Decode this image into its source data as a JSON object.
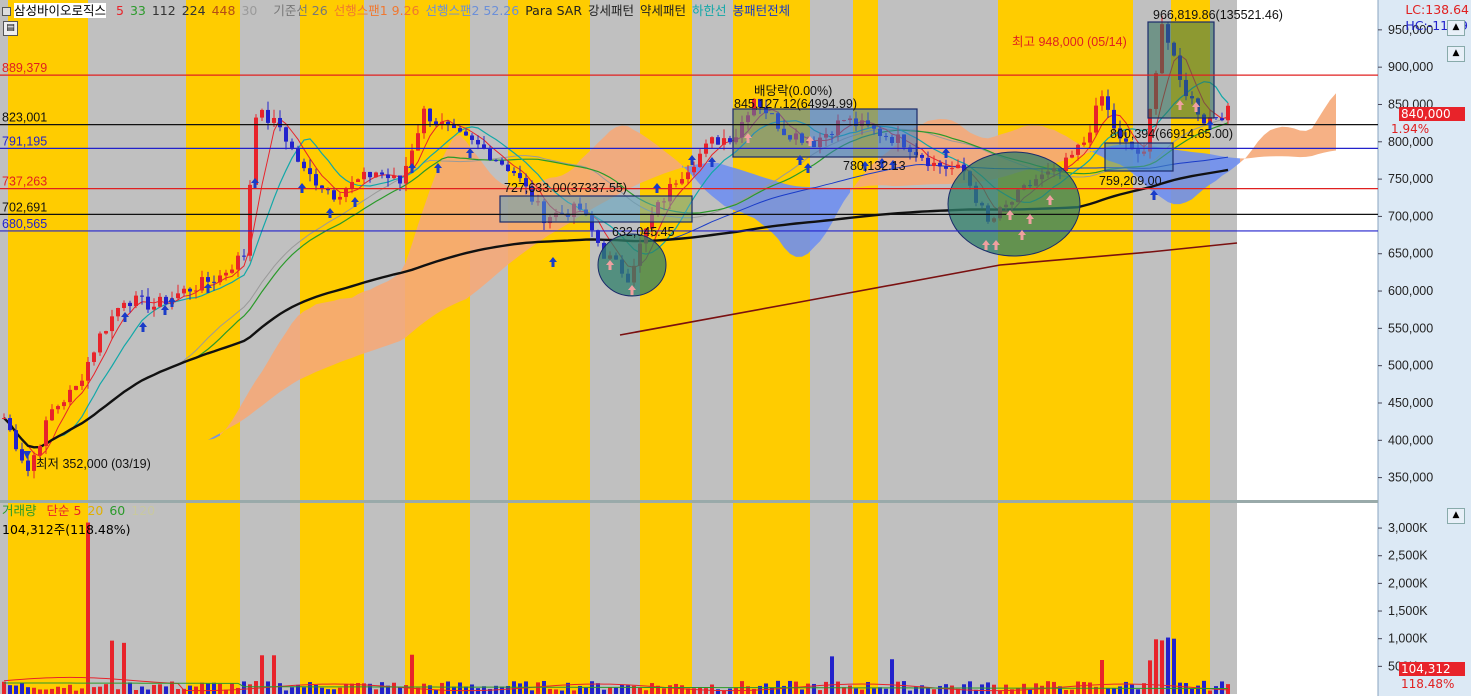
{
  "legend": {
    "title": "삼성바이오로직스",
    "ma": [
      {
        "label": "5",
        "color": "#e8232a"
      },
      {
        "label": "33",
        "color": "#2a9a2a"
      },
      {
        "label": "112",
        "color": "#333333"
      },
      {
        "label": "224",
        "color": "#333333"
      },
      {
        "label": "448",
        "color": "#b44c14"
      },
      {
        "label": "30",
        "color": "#9a9a9a"
      }
    ],
    "items": [
      {
        "label": "기준선 26",
        "color": "#777777"
      },
      {
        "label": "선행스팬1 9.26",
        "color": "#f07830"
      },
      {
        "label": "선행스팬2 52.26",
        "color": "#6b8fd8"
      },
      {
        "label": "Para SAR",
        "color": "#222222"
      },
      {
        "label": "강세패턴",
        "color": "#222222"
      },
      {
        "label": "약세패턴",
        "color": "#222222"
      },
      {
        "label": "하한선",
        "color": "#12a8a8"
      },
      {
        "label": "봉패턴전체",
        "color": "#1a3cc8"
      }
    ]
  },
  "top_right": {
    "lc": "LC:138.64",
    "hc": "HC:-11.39"
  },
  "annotations": {
    "high": "최고 948,000 (05/14)",
    "low": "최저 352,000 (03/19)",
    "dividend": "배당락(0.00%)",
    "box_labels": [
      "966,819.86(135521.46)",
      "845,127.12(64994.99)",
      "780,132.13",
      "727,633.00(37337.55)",
      "632,045.45",
      "759,209.00",
      "800,394(66914.65.00)"
    ]
  },
  "levels": [
    {
      "label": "889,379",
      "value": 889379,
      "color": "#e02020"
    },
    {
      "label": "823,001",
      "value": 823001,
      "color": "#111111"
    },
    {
      "label": "791,195",
      "value": 791195,
      "color": "#2222cc"
    },
    {
      "label": "737,263",
      "value": 737263,
      "color": "#e02020"
    },
    {
      "label": "702,691",
      "value": 702691,
      "color": "#111111"
    },
    {
      "label": "680,565",
      "value": 680565,
      "color": "#2222cc"
    }
  ],
  "current": {
    "price": "840,000",
    "change": "1.94%"
  },
  "price_axis": {
    "min": 320000,
    "max": 990000,
    "ticks": [
      "950,000",
      "900,000",
      "850,000",
      "800,000",
      "750,000",
      "700,000",
      "650,000",
      "600,000",
      "550,000",
      "500,000",
      "450,000",
      "400,000",
      "350,000"
    ]
  },
  "volume": {
    "legend": {
      "label": "거래량",
      "ma": [
        {
          "label": "단순 5",
          "color": "#e8232a"
        },
        {
          "label": "20",
          "color": "#e0b000"
        },
        {
          "label": "60",
          "color": "#2a9a2a"
        },
        {
          "label": "120",
          "color": "#c8c8a0"
        }
      ]
    },
    "readout": "104,312주(118.48%)",
    "current": "104,312",
    "current_pct": "118.48%",
    "max": 3200,
    "ticks": [
      "3,000K",
      "2,500K",
      "2,000K",
      "1,500K",
      "1,000K",
      "500K"
    ]
  },
  "colors": {
    "band_yellow": "#ffcc00",
    "band_gray": "#c0c0c0",
    "axis_bg": "#dce9f5",
    "cloud_orange": "#f5a878",
    "cloud_blue": "#6f8ff0",
    "candle_up": "#e8232a",
    "candle_down": "#2222cc"
  }
}
